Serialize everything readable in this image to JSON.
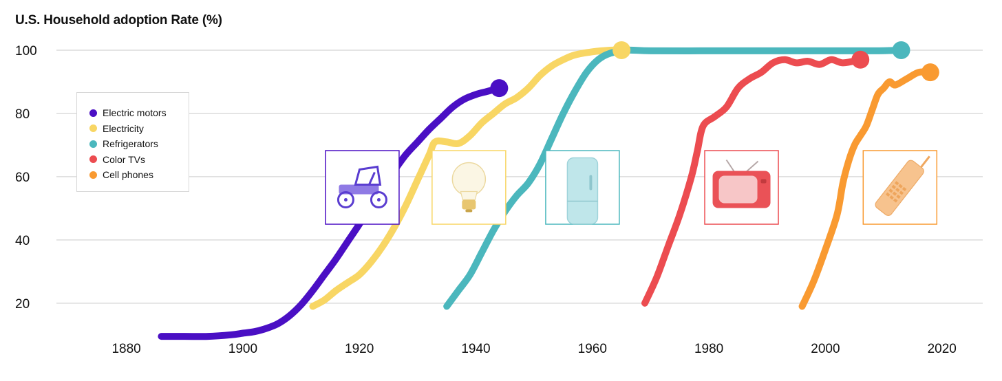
{
  "chart_data": {
    "type": "line",
    "title": "U.S. Household adoption Rate (%)",
    "xlabel": "",
    "ylabel": "",
    "xlim": [
      1868,
      2027
    ],
    "ylim": [
      8,
      105
    ],
    "x_ticks": [
      1880,
      1900,
      1920,
      1940,
      1960,
      1980,
      2000,
      2020
    ],
    "y_ticks": [
      20,
      40,
      60,
      80,
      100
    ],
    "grid": true,
    "legend_position": "left",
    "series": [
      {
        "name": "Electric motors",
        "color": "#4a0fc4",
        "icon": "antique-car-icon",
        "points": [
          [
            1886,
            9.5
          ],
          [
            1890,
            9.5
          ],
          [
            1894,
            9.5
          ],
          [
            1898,
            10
          ],
          [
            1900,
            10.5
          ],
          [
            1902,
            11
          ],
          [
            1904,
            12
          ],
          [
            1906,
            13.5
          ],
          [
            1908,
            16
          ],
          [
            1910,
            19.5
          ],
          [
            1912,
            24
          ],
          [
            1914,
            29
          ],
          [
            1916,
            34
          ],
          [
            1918,
            39.5
          ],
          [
            1920,
            45
          ],
          [
            1922,
            51
          ],
          [
            1924,
            57
          ],
          [
            1926,
            62
          ],
          [
            1928,
            67
          ],
          [
            1930,
            71
          ],
          [
            1932,
            75
          ],
          [
            1934,
            78.5
          ],
          [
            1936,
            82
          ],
          [
            1938,
            84.5
          ],
          [
            1940,
            86
          ],
          [
            1942,
            87
          ],
          [
            1944,
            88
          ]
        ]
      },
      {
        "name": "Electricity",
        "color": "#f8d664",
        "icon": "light-bulb-icon",
        "points": [
          [
            1912,
            19
          ],
          [
            1914,
            21
          ],
          [
            1916,
            24
          ],
          [
            1918,
            26.5
          ],
          [
            1920,
            29
          ],
          [
            1922,
            33
          ],
          [
            1924,
            38
          ],
          [
            1926,
            44
          ],
          [
            1928,
            51
          ],
          [
            1930,
            59
          ],
          [
            1932,
            67
          ],
          [
            1933,
            71
          ],
          [
            1935,
            71
          ],
          [
            1937,
            70.5
          ],
          [
            1939,
            73
          ],
          [
            1941,
            77
          ],
          [
            1943,
            80
          ],
          [
            1945,
            83
          ],
          [
            1947,
            85
          ],
          [
            1949,
            88
          ],
          [
            1951,
            92
          ],
          [
            1953,
            95
          ],
          [
            1955,
            97
          ],
          [
            1957,
            98.5
          ],
          [
            1960,
            99.5
          ],
          [
            1963,
            100
          ],
          [
            1965,
            100
          ]
        ]
      },
      {
        "name": "Refrigerators",
        "color": "#4bb7bd",
        "icon": "refrigerator-icon",
        "points": [
          [
            1935,
            19
          ],
          [
            1937,
            24
          ],
          [
            1939,
            29
          ],
          [
            1941,
            36
          ],
          [
            1943,
            43
          ],
          [
            1945,
            49
          ],
          [
            1947,
            54
          ],
          [
            1949,
            58
          ],
          [
            1951,
            64
          ],
          [
            1953,
            72
          ],
          [
            1955,
            80
          ],
          [
            1957,
            87
          ],
          [
            1959,
            93
          ],
          [
            1961,
            97
          ],
          [
            1963,
            99
          ],
          [
            1966,
            100
          ],
          [
            1970,
            99.8
          ],
          [
            1980,
            99.8
          ],
          [
            1990,
            99.8
          ],
          [
            2000,
            99.8
          ],
          [
            2008,
            99.8
          ],
          [
            2013,
            100
          ]
        ]
      },
      {
        "name": "Color TVs",
        "color": "#ec4c50",
        "icon": "television-icon",
        "points": [
          [
            1969,
            20
          ],
          [
            1971,
            28
          ],
          [
            1973,
            38
          ],
          [
            1975,
            48
          ],
          [
            1977,
            60
          ],
          [
            1978,
            68
          ],
          [
            1979,
            76
          ],
          [
            1981,
            79
          ],
          [
            1983,
            82
          ],
          [
            1985,
            88
          ],
          [
            1987,
            91
          ],
          [
            1989,
            93
          ],
          [
            1991,
            96
          ],
          [
            1993,
            97
          ],
          [
            1995,
            96
          ],
          [
            1997,
            96.5
          ],
          [
            1999,
            95.5
          ],
          [
            2001,
            97
          ],
          [
            2003,
            96
          ],
          [
            2006,
            97
          ]
        ]
      },
      {
        "name": "Cell phones",
        "color": "#f99a31",
        "icon": "mobile-phone-icon",
        "points": [
          [
            1996,
            19
          ],
          [
            1998,
            27
          ],
          [
            2000,
            37
          ],
          [
            2002,
            48
          ],
          [
            2003,
            58
          ],
          [
            2004,
            65
          ],
          [
            2005,
            70
          ],
          [
            2006,
            73
          ],
          [
            2007,
            76
          ],
          [
            2008,
            81
          ],
          [
            2009,
            86
          ],
          [
            2010,
            88
          ],
          [
            2011,
            90
          ],
          [
            2012,
            89
          ],
          [
            2014,
            91
          ],
          [
            2016,
            93
          ],
          [
            2018,
            93
          ]
        ]
      }
    ]
  }
}
